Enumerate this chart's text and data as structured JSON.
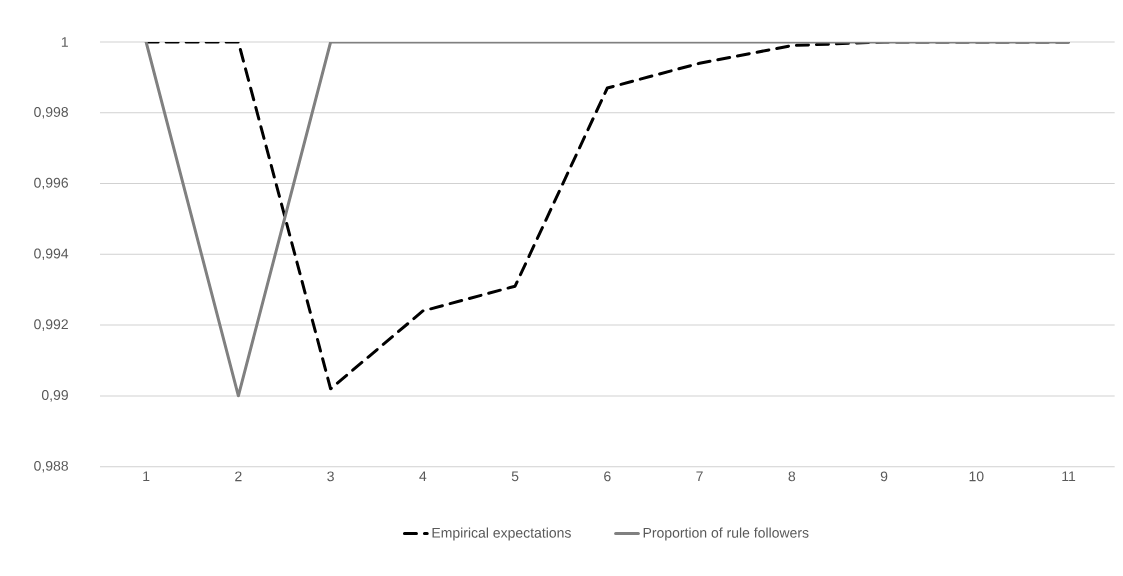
{
  "chart_data": {
    "type": "line",
    "categories": [
      "1",
      "2",
      "3",
      "4",
      "5",
      "6",
      "7",
      "8",
      "9",
      "10",
      "11"
    ],
    "series": [
      {
        "name": "Empirical expectations",
        "color": "#000000",
        "line_style": "dashed",
        "values": [
          1,
          1,
          0.9902,
          0.9924,
          0.9931,
          0.9987,
          0.9994,
          0.9999,
          1,
          1,
          1
        ]
      },
      {
        "name": "Proportion of rule followers",
        "color": "#808080",
        "line_style": "solid",
        "values": [
          1,
          0.99,
          1,
          1,
          1,
          1,
          1,
          1,
          1,
          1,
          1
        ]
      }
    ],
    "ylim": [
      0.988,
      1.0
    ],
    "yticks": [
      {
        "value": 0.988,
        "label": "0,988"
      },
      {
        "value": 0.99,
        "label": "0,99"
      },
      {
        "value": 0.992,
        "label": "0,992"
      },
      {
        "value": 0.994,
        "label": "0,994"
      },
      {
        "value": 0.996,
        "label": "0,996"
      },
      {
        "value": 0.998,
        "label": "0,998"
      },
      1
    ],
    "grid": "y",
    "legend": "bottom",
    "marker": "none"
  }
}
